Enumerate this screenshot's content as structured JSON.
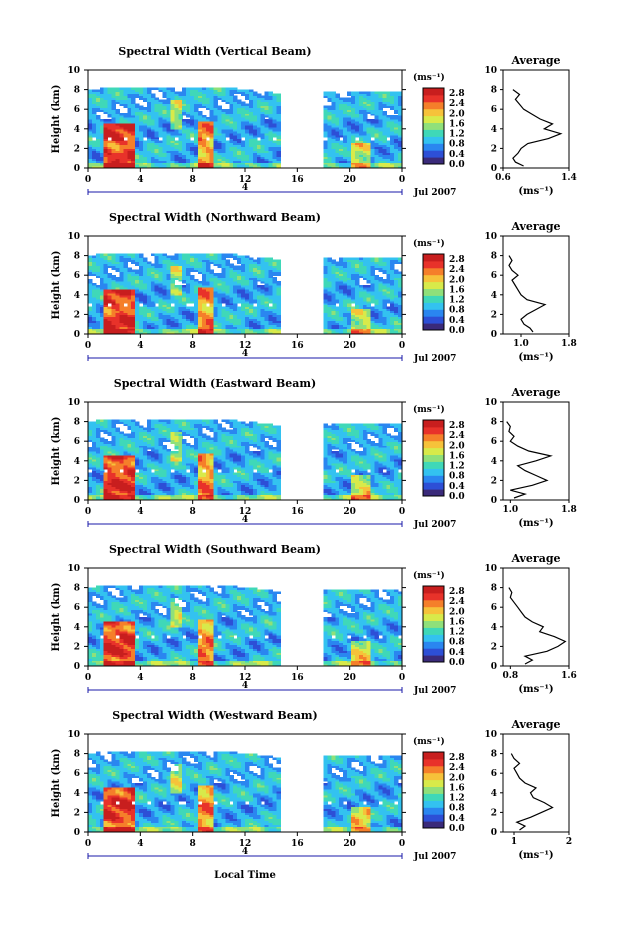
{
  "figure": {
    "xlabel": "Local Time",
    "date_label": "Jul 2007",
    "day_label": "4",
    "colorbar": {
      "unit": "(ms⁻¹)",
      "ticks": [
        "2.8",
        "2.4",
        "2.0",
        "1.6",
        "1.2",
        "0.8",
        "0.4",
        "0.0"
      ]
    },
    "colors": {
      "scale": [
        "#3a2a7a",
        "#2d4fd6",
        "#2a86f0",
        "#33c2f0",
        "#3fd8b8",
        "#8fe07a",
        "#d8ea4a",
        "#f6c23a",
        "#f57f2a",
        "#e8322a",
        "#c81e1e"
      ],
      "white": "#ffffff",
      "ink": "#000000",
      "axis_nav": "#1a1aa8"
    }
  },
  "chart_data": [
    {
      "type": "heatmap",
      "title": "Spectral Width (Vertical Beam)",
      "ylabel": "Height (km)",
      "x_ticks": [
        "0",
        "4",
        "8",
        "12",
        "16",
        "20",
        "0"
      ],
      "xlim": [
        0,
        24
      ],
      "y_ticks": [
        "0",
        "2",
        "4",
        "6",
        "8",
        "10"
      ],
      "ylim": [
        0,
        10
      ],
      "value_range": [
        0.0,
        3.0
      ],
      "data_gap_hours": [
        14.6,
        17.8
      ],
      "average_profile": {
        "title": "Average",
        "xlabel": "(ms⁻¹)",
        "x_ticks": [
          "0.6",
          "1.4"
        ],
        "xlim": [
          0.6,
          1.4
        ],
        "heights": [
          0.2,
          0.6,
          1.0,
          1.5,
          2.0,
          2.5,
          3.0,
          3.5,
          4.0,
          4.5,
          5.0,
          5.5,
          6.0,
          6.5,
          7.0,
          7.5,
          8.0
        ],
        "values": [
          0.85,
          0.75,
          0.72,
          0.78,
          0.82,
          0.9,
          1.15,
          1.3,
          1.1,
          1.2,
          1.05,
          0.95,
          0.85,
          0.8,
          0.75,
          0.8,
          0.72
        ]
      }
    },
    {
      "type": "heatmap",
      "title": "Spectral Width (Northward Beam)",
      "ylabel": "Height (km)",
      "x_ticks": [
        "0",
        "4",
        "8",
        "12",
        "16",
        "20",
        "0"
      ],
      "xlim": [
        0,
        24
      ],
      "y_ticks": [
        "0",
        "2",
        "4",
        "6",
        "8",
        "10"
      ],
      "ylim": [
        0,
        10
      ],
      "value_range": [
        0.0,
        3.0
      ],
      "data_gap_hours": [
        14.6,
        17.8
      ],
      "average_profile": {
        "title": "Average",
        "xlabel": "(ms⁻¹)",
        "x_ticks": [
          "1.0",
          "1.8"
        ],
        "xlim": [
          0.7,
          1.8
        ],
        "heights": [
          0.2,
          0.6,
          1.0,
          1.5,
          2.0,
          2.5,
          3.0,
          3.5,
          4.0,
          4.5,
          5.0,
          5.5,
          6.0,
          6.5,
          7.0,
          7.5,
          8.0
        ],
        "values": [
          1.2,
          1.15,
          1.05,
          1.0,
          1.1,
          1.25,
          1.4,
          1.1,
          1.0,
          0.95,
          0.9,
          0.85,
          0.95,
          0.85,
          0.8,
          0.85,
          0.8
        ]
      }
    },
    {
      "type": "heatmap",
      "title": "Spectral Width (Eastward Beam)",
      "ylabel": "Height (km)",
      "x_ticks": [
        "0",
        "4",
        "8",
        "12",
        "16",
        "20",
        "0"
      ],
      "xlim": [
        0,
        24
      ],
      "y_ticks": [
        "0",
        "2",
        "4",
        "6",
        "8",
        "10"
      ],
      "ylim": [
        0,
        10
      ],
      "value_range": [
        0.0,
        3.0
      ],
      "data_gap_hours": [
        14.6,
        17.8
      ],
      "average_profile": {
        "title": "Average",
        "xlabel": "(ms⁻¹)",
        "x_ticks": [
          "1.0",
          "1.8"
        ],
        "xlim": [
          0.9,
          1.8
        ],
        "heights": [
          0.2,
          0.6,
          1.0,
          1.5,
          2.0,
          2.5,
          3.0,
          3.5,
          4.0,
          4.5,
          5.0,
          5.5,
          6.0,
          6.5,
          7.0,
          7.5,
          8.0
        ],
        "values": [
          1.05,
          1.2,
          1.0,
          1.3,
          1.5,
          1.35,
          1.2,
          1.1,
          1.35,
          1.55,
          1.25,
          1.1,
          1.0,
          1.05,
          0.98,
          1.0,
          0.95
        ]
      }
    },
    {
      "type": "heatmap",
      "title": "Spectral Width (Southward Beam)",
      "ylabel": "Height (km)",
      "x_ticks": [
        "0",
        "4",
        "8",
        "12",
        "16",
        "20",
        "0"
      ],
      "xlim": [
        0,
        24
      ],
      "y_ticks": [
        "0",
        "2",
        "4",
        "6",
        "8",
        "10"
      ],
      "ylim": [
        0,
        10
      ],
      "value_range": [
        0.0,
        3.0
      ],
      "data_gap_hours": [
        14.6,
        17.8
      ],
      "average_profile": {
        "title": "Average",
        "xlabel": "(ms⁻¹)",
        "x_ticks": [
          "0.8",
          "1.6"
        ],
        "xlim": [
          0.7,
          1.6
        ],
        "heights": [
          0.2,
          0.6,
          1.0,
          1.5,
          2.0,
          2.5,
          3.0,
          3.5,
          4.0,
          4.5,
          5.0,
          5.5,
          6.0,
          6.5,
          7.0,
          7.5,
          8.0
        ],
        "values": [
          1.0,
          1.1,
          1.0,
          1.3,
          1.45,
          1.55,
          1.4,
          1.2,
          1.25,
          1.1,
          1.0,
          0.95,
          0.9,
          0.85,
          0.8,
          0.82,
          0.78
        ]
      }
    },
    {
      "type": "heatmap",
      "title": "Spectral Width (Westward Beam)",
      "ylabel": "Height (km)",
      "x_ticks": [
        "0",
        "4",
        "8",
        "12",
        "16",
        "20",
        "0"
      ],
      "xlim": [
        0,
        24
      ],
      "y_ticks": [
        "0",
        "2",
        "4",
        "6",
        "8",
        "10"
      ],
      "ylim": [
        0,
        10
      ],
      "value_range": [
        0.0,
        3.0
      ],
      "data_gap_hours": [
        14.6,
        17.8
      ],
      "average_profile": {
        "title": "Average",
        "xlabel": "(ms⁻¹)",
        "x_ticks": [
          "1",
          "2"
        ],
        "xlim": [
          0.8,
          2.0
        ],
        "heights": [
          0.2,
          0.6,
          1.0,
          1.5,
          2.0,
          2.5,
          3.0,
          3.5,
          4.0,
          4.5,
          5.0,
          5.5,
          6.0,
          6.5,
          7.0,
          7.5,
          8.0
        ],
        "values": [
          1.1,
          1.2,
          1.05,
          1.3,
          1.5,
          1.7,
          1.55,
          1.35,
          1.3,
          1.4,
          1.2,
          1.1,
          1.05,
          1.0,
          1.1,
          1.0,
          0.95
        ]
      }
    }
  ]
}
